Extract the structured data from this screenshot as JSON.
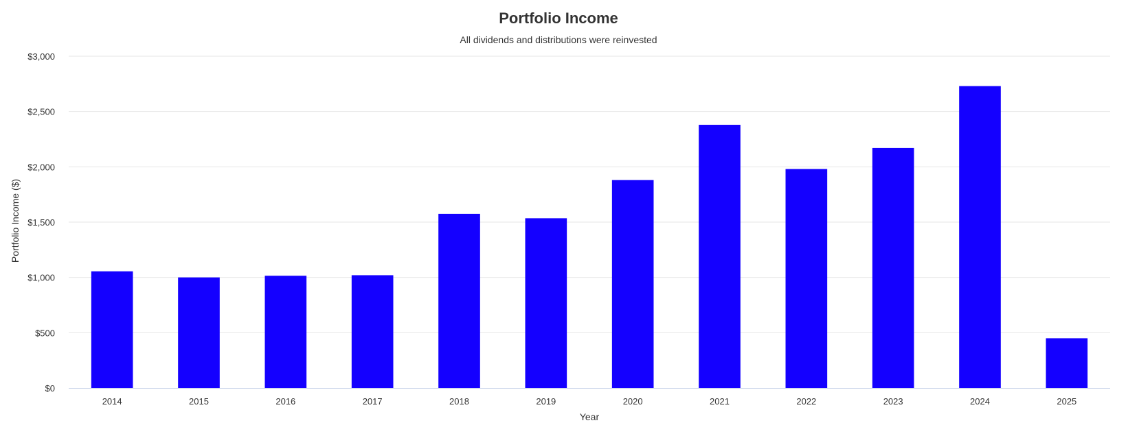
{
  "chart_data": {
    "type": "bar",
    "title": "Portfolio Income",
    "subtitle": "All dividends and distributions were reinvested",
    "xlabel": "Year",
    "ylabel": "Portfolio Income ($)",
    "categories": [
      "2014",
      "2015",
      "2016",
      "2017",
      "2018",
      "2019",
      "2020",
      "2021",
      "2022",
      "2023",
      "2024",
      "2025"
    ],
    "series": [
      {
        "values": [
          1055,
          1000,
          1015,
          1020,
          1575,
          1535,
          1880,
          2380,
          1980,
          2170,
          2730,
          450
        ],
        "color": "#1400ff"
      }
    ],
    "ylim": [
      0,
      3000
    ],
    "yticks": [
      0,
      500,
      1000,
      1500,
      2000,
      2500,
      3000
    ],
    "ytick_labels": [
      "$0",
      "$500",
      "$1,000",
      "$1,500",
      "$2,000",
      "$2,500",
      "$3,000"
    ],
    "grid": true,
    "legend": "none"
  }
}
